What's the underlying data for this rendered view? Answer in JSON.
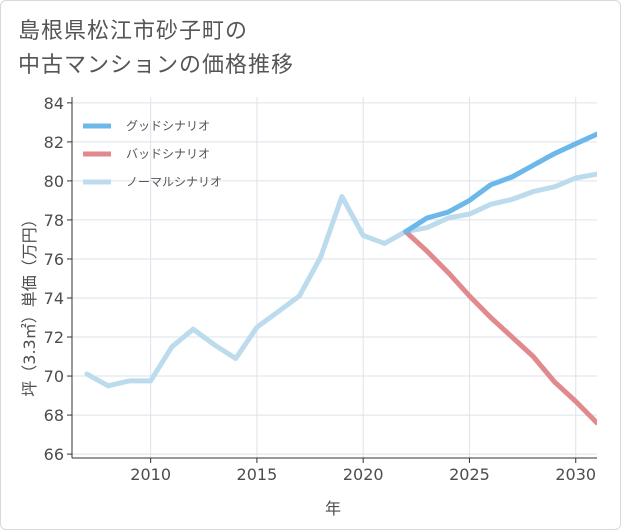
{
  "title_lines": [
    "島根県松江市砂子町の",
    "中古マンションの価格推移"
  ],
  "chart_data": {
    "type": "line",
    "title": "島根県松江市砂子町の中古マンションの価格推移",
    "xlabel": "年",
    "ylabel": "坪（3.3㎡）単価（万円）",
    "xlim": [
      2006.3,
      2031
    ],
    "ylim": [
      65.8,
      84.3
    ],
    "xticks": [
      2010,
      2015,
      2020,
      2025,
      2030
    ],
    "yticks": [
      66,
      68,
      70,
      72,
      74,
      76,
      78,
      80,
      82,
      84
    ],
    "legend_position": "top-left",
    "series": [
      {
        "name": "グッドシナリオ",
        "color": "#6cb8ea",
        "x": [
          2022,
          2023,
          2024,
          2025,
          2026,
          2027,
          2028,
          2029,
          2030,
          2031
        ],
        "y": [
          77.4,
          78.1,
          78.4,
          79.0,
          79.8,
          80.2,
          80.8,
          81.4,
          81.9,
          82.4
        ]
      },
      {
        "name": "バッドシナリオ",
        "color": "#e08a8e",
        "x": [
          2022,
          2023,
          2024,
          2025,
          2026,
          2027,
          2028,
          2029,
          2030,
          2031
        ],
        "y": [
          77.4,
          76.4,
          75.3,
          74.1,
          73.0,
          72.0,
          71.0,
          69.7,
          68.7,
          67.6
        ]
      },
      {
        "name": "ノーマルシナリオ",
        "color": "#bcdcee",
        "x": [
          2007,
          2008,
          2009,
          2010,
          2011,
          2012,
          2013,
          2014,
          2015,
          2016,
          2017,
          2018,
          2019,
          2020,
          2021,
          2022,
          2023,
          2024,
          2025,
          2026,
          2027,
          2028,
          2029,
          2030,
          2031
        ],
        "y": [
          70.1,
          69.5,
          69.75,
          69.75,
          71.5,
          72.4,
          71.6,
          70.9,
          72.5,
          73.3,
          74.1,
          76.1,
          79.2,
          77.2,
          76.8,
          77.4,
          77.6,
          78.1,
          78.3,
          78.8,
          79.05,
          79.45,
          79.7,
          80.15,
          80.35
        ]
      }
    ]
  }
}
